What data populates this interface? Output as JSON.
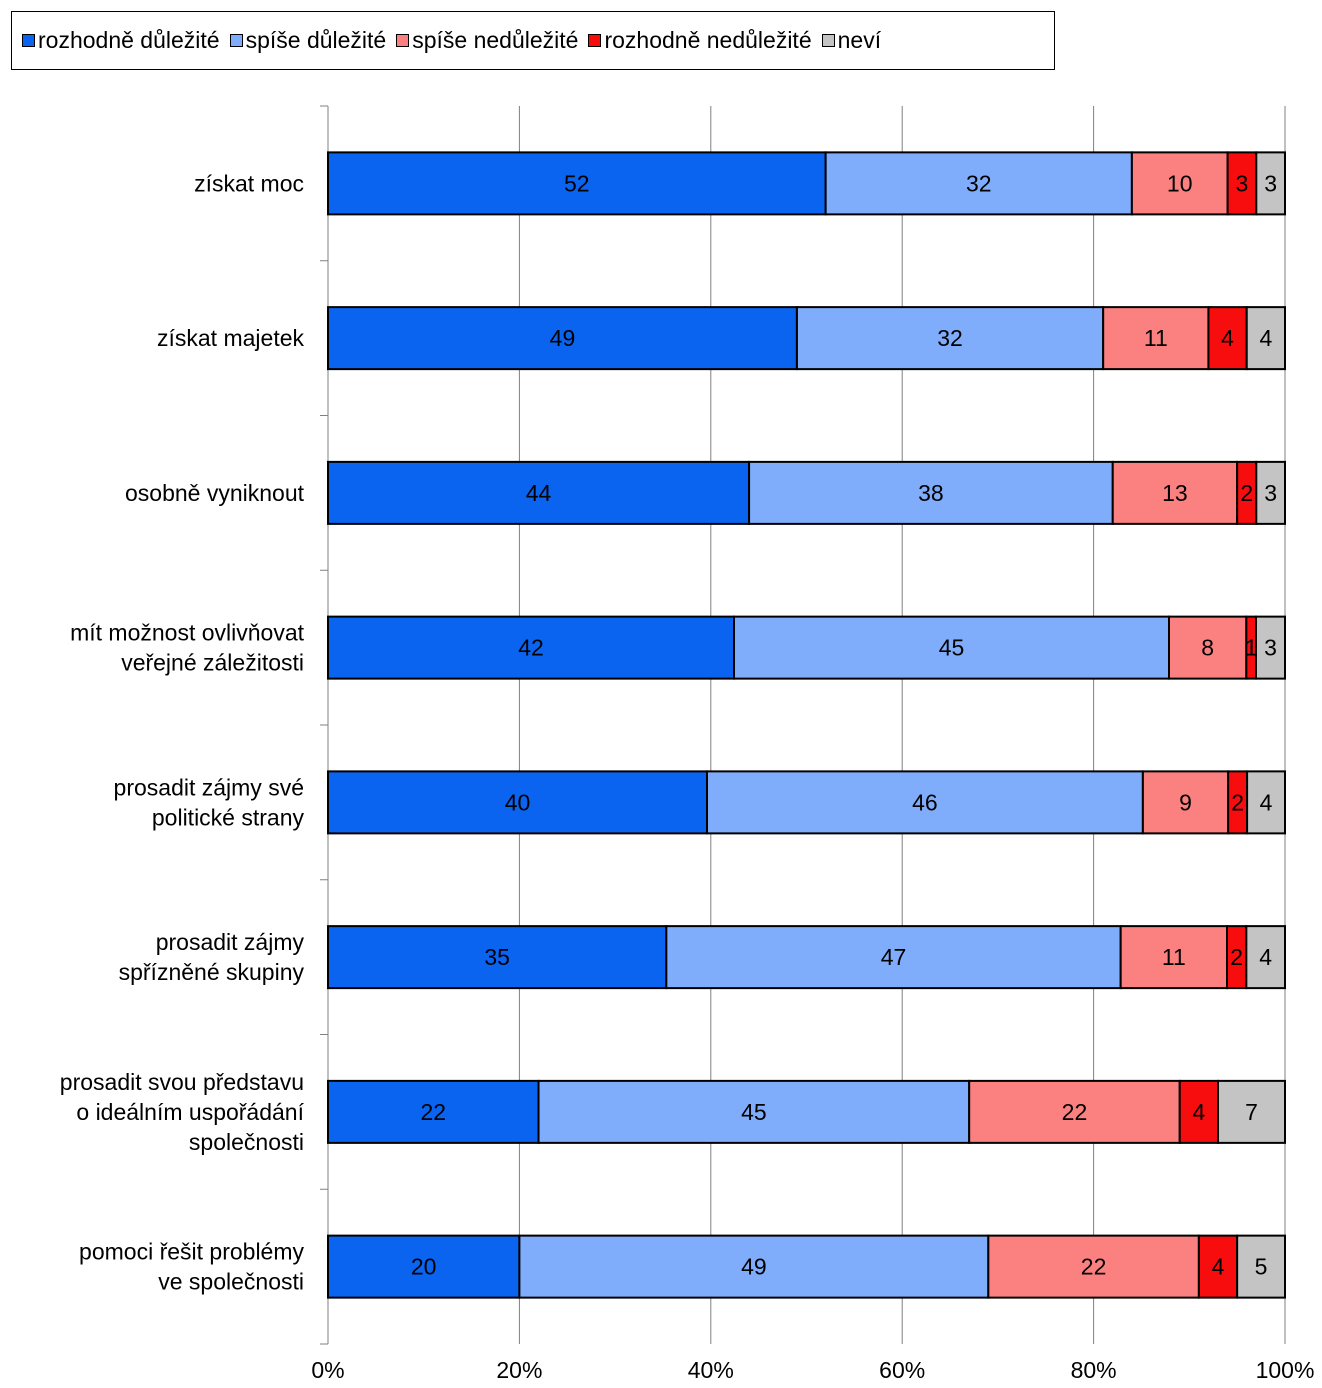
{
  "chart_data": {
    "type": "bar",
    "orientation": "horizontal",
    "stacked": true,
    "percent_stacked": true,
    "legend_position": "top-left",
    "grid": true,
    "xlim": [
      0,
      100
    ],
    "x_ticks": [
      "0%",
      "20%",
      "40%",
      "60%",
      "80%",
      "100%"
    ],
    "categories": [
      [
        "získat moc"
      ],
      [
        "získat majetek"
      ],
      [
        "osobně vyniknout"
      ],
      [
        "mít možnost ovlivňovat",
        "veřejné záležitosti"
      ],
      [
        "prosadit zájmy své",
        "politické strany"
      ],
      [
        "prosadit zájmy",
        "spřízněné skupiny"
      ],
      [
        "prosadit svou představu",
        "o ideálním uspořádání",
        "společnosti"
      ],
      [
        "pomoci řešit problémy",
        "ve společnosti"
      ]
    ],
    "series": [
      {
        "name": "rozhodně důležité",
        "color": "#0a64f0",
        "values": [
          52,
          49,
          44,
          42,
          40,
          35,
          22,
          20
        ]
      },
      {
        "name": "spíše důležité",
        "color": "#7fadfb",
        "values": [
          32,
          32,
          38,
          45,
          46,
          47,
          45,
          49
        ]
      },
      {
        "name": "spíše nedůležité",
        "color": "#fb8080",
        "values": [
          10,
          11,
          13,
          8,
          9,
          11,
          22,
          22
        ]
      },
      {
        "name": "rozhodně nedůležité",
        "color": "#f70d0d",
        "values": [
          3,
          4,
          2,
          1,
          2,
          2,
          4,
          4
        ]
      },
      {
        "name": "neví",
        "color": "#c4c4c4",
        "values": [
          3,
          4,
          3,
          3,
          4,
          4,
          7,
          5
        ]
      }
    ]
  }
}
